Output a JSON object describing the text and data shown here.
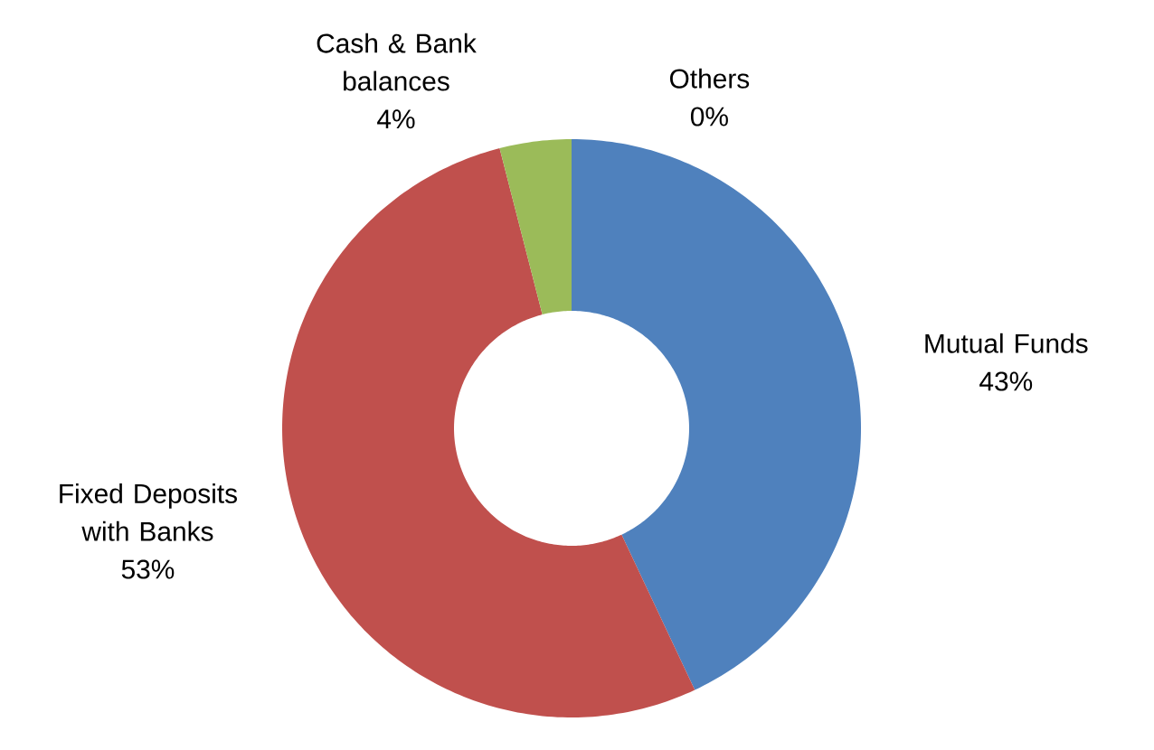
{
  "chart_data": {
    "type": "donut",
    "categories": [
      "Mutual Funds",
      "Fixed Deposits with Banks",
      "Cash & Bank balances",
      "Others"
    ],
    "values": [
      43,
      53,
      4,
      0
    ],
    "value_labels": [
      "43%",
      "53%",
      "4%",
      "0%"
    ],
    "colors": [
      "#4f81bd",
      "#c0504d",
      "#9bbb59",
      "#8064a2"
    ]
  }
}
